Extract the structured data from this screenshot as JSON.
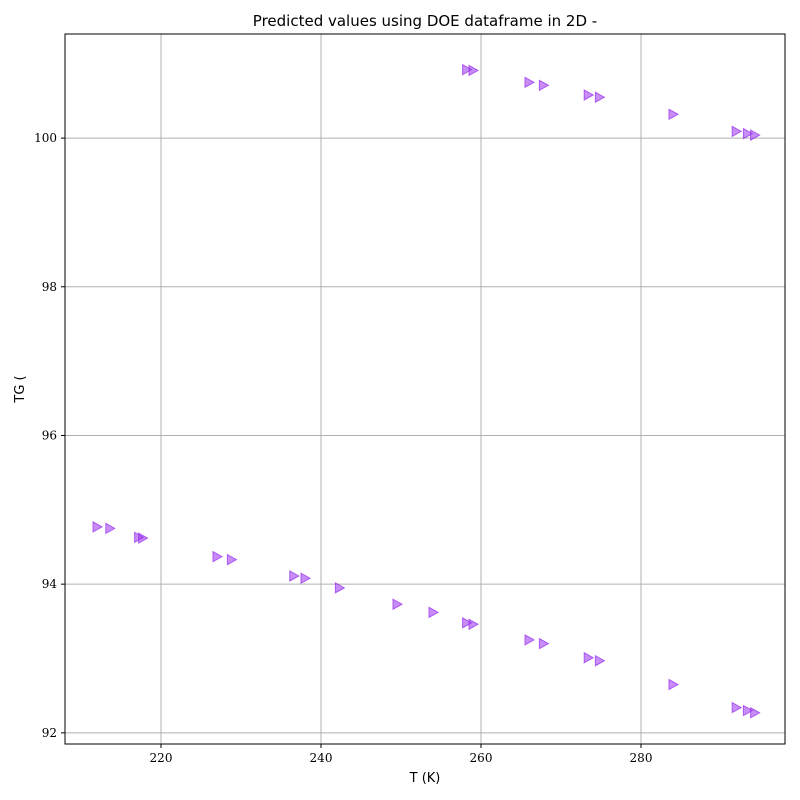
{
  "chart_data": {
    "type": "scatter",
    "title": "Predicted values using DOE dataframe in 2D -",
    "xlabel": "T (K)",
    "ylabel": "TG (",
    "xlim": [
      208,
      298
    ],
    "ylim": [
      91.85,
      101.4
    ],
    "xticks": [
      220,
      240,
      260,
      280
    ],
    "yticks": [
      92,
      94,
      96,
      98,
      100
    ],
    "grid": true,
    "marker": "triangle-right",
    "color": "#9933ee",
    "series": [
      {
        "x": [
          258.2,
          259.0,
          266.0,
          267.8,
          273.4,
          274.8,
          284.0,
          291.9,
          293.3,
          294.2
        ],
        "y": [
          100.92,
          100.91,
          100.75,
          100.71,
          100.58,
          100.55,
          100.32,
          100.09,
          100.06,
          100.04
        ]
      },
      {
        "x": [
          212.0,
          213.6,
          217.2,
          217.7,
          227.0,
          228.8,
          236.6,
          238.0,
          242.3,
          249.5,
          254.0,
          258.2,
          259.0,
          266.0,
          267.8,
          273.4,
          274.8,
          284.0,
          291.9,
          293.3,
          294.2
        ],
        "y": [
          94.77,
          94.75,
          94.63,
          94.62,
          94.37,
          94.33,
          94.11,
          94.08,
          93.95,
          93.73,
          93.62,
          93.48,
          93.46,
          93.25,
          93.2,
          93.01,
          92.97,
          92.65,
          92.34,
          92.3,
          92.27
        ]
      }
    ]
  }
}
